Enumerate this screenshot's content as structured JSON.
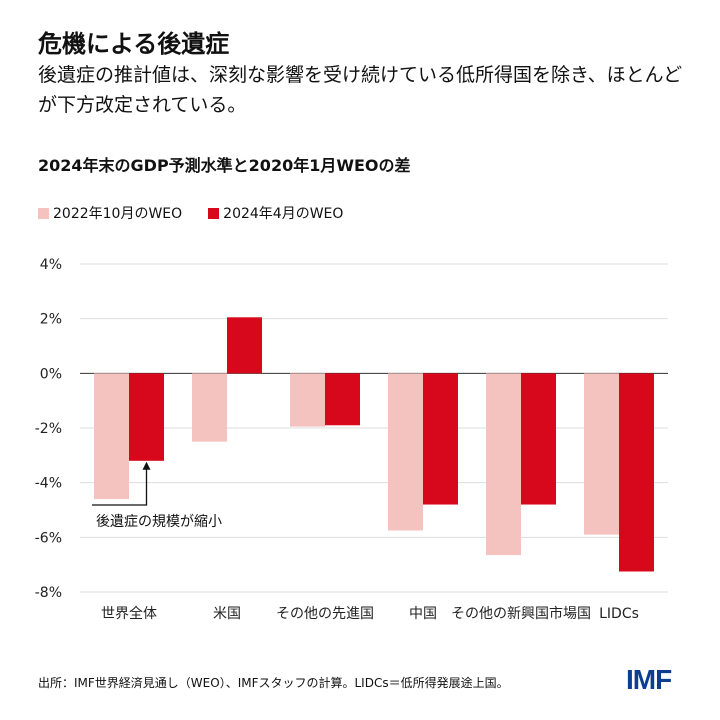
{
  "title": "危機による後遺症",
  "subtitle": "後遺症の推計値は、深刻な影響を受け続けている低所得国を除き、ほとんどが下方改定されている。",
  "source": "出所：IMF世界経済見通し（WEO）、IMFスタッフの計算。LIDCs＝低所得発展途上国。",
  "logo": "IMF",
  "colors": {
    "series1": "#f4c3c0",
    "series2": "#d7081b",
    "logo": "#0b3d91"
  },
  "chart_data": {
    "type": "bar",
    "title": "2024年末のGDP予測水準と2020年1月WEOの差",
    "categories": [
      "世界全体",
      "米国",
      "その他の先進国",
      "中国",
      "その他の新興国市場国",
      "LIDCs"
    ],
    "series": [
      {
        "name": "2022年10月のWEO",
        "values": [
          -4.6,
          -2.5,
          -1.95,
          -5.75,
          -6.65,
          -5.9
        ]
      },
      {
        "name": "2024年4月のWEO",
        "values": [
          -3.2,
          2.05,
          -1.9,
          -4.8,
          -4.8,
          -7.25
        ]
      }
    ],
    "ylim": [
      -8,
      4
    ],
    "yticks": [
      "4%",
      "2%",
      "0%",
      "-2%",
      "-4%",
      "-6%",
      "-8%"
    ],
    "ytick_values": [
      4,
      2,
      0,
      -2,
      -4,
      -6,
      -8
    ],
    "grid": true,
    "legend": "top-left",
    "annotation": "後遺症の規模が縮小"
  }
}
